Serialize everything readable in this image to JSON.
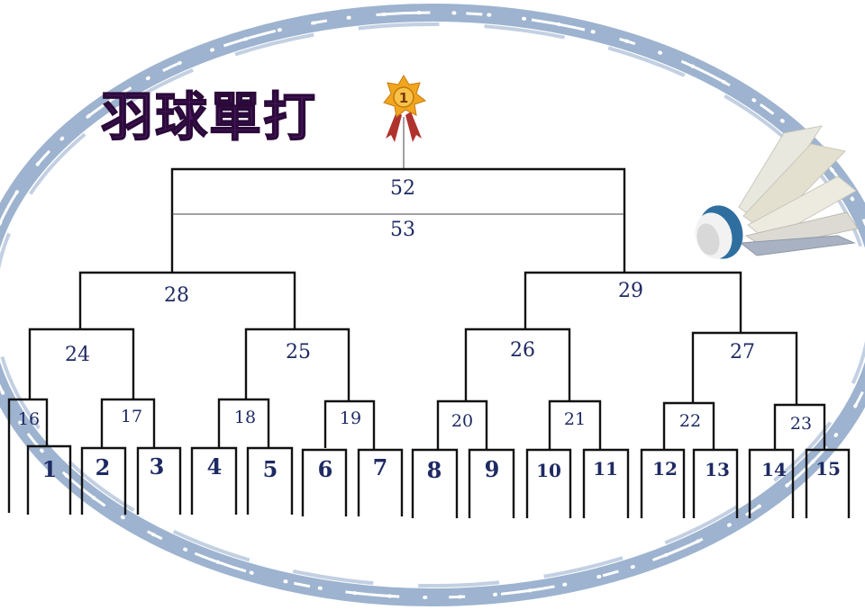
{
  "title": "羽球單打",
  "medal_number": "1",
  "colors": {
    "ribbon": "#9db3cf",
    "title_purple": "#4b1860",
    "number_navy": "#1e2a63",
    "medal_gold": "#f2a51f",
    "medal_ribbon": "#b0322d"
  },
  "bracket": {
    "final_top": "52",
    "final_bottom": "53",
    "semi": [
      "28",
      "29"
    ],
    "quarter": [
      "24",
      "25",
      "26",
      "27"
    ],
    "round2": [
      "16",
      "17",
      "18",
      "19",
      "20",
      "21",
      "22",
      "23"
    ],
    "players": [
      "1",
      "2",
      "3",
      "4",
      "5",
      "6",
      "7",
      "8",
      "9",
      "10",
      "11",
      "12",
      "13",
      "14",
      "15"
    ]
  },
  "icons": [
    "gold-medal-icon",
    "shuttlecock-icon"
  ]
}
